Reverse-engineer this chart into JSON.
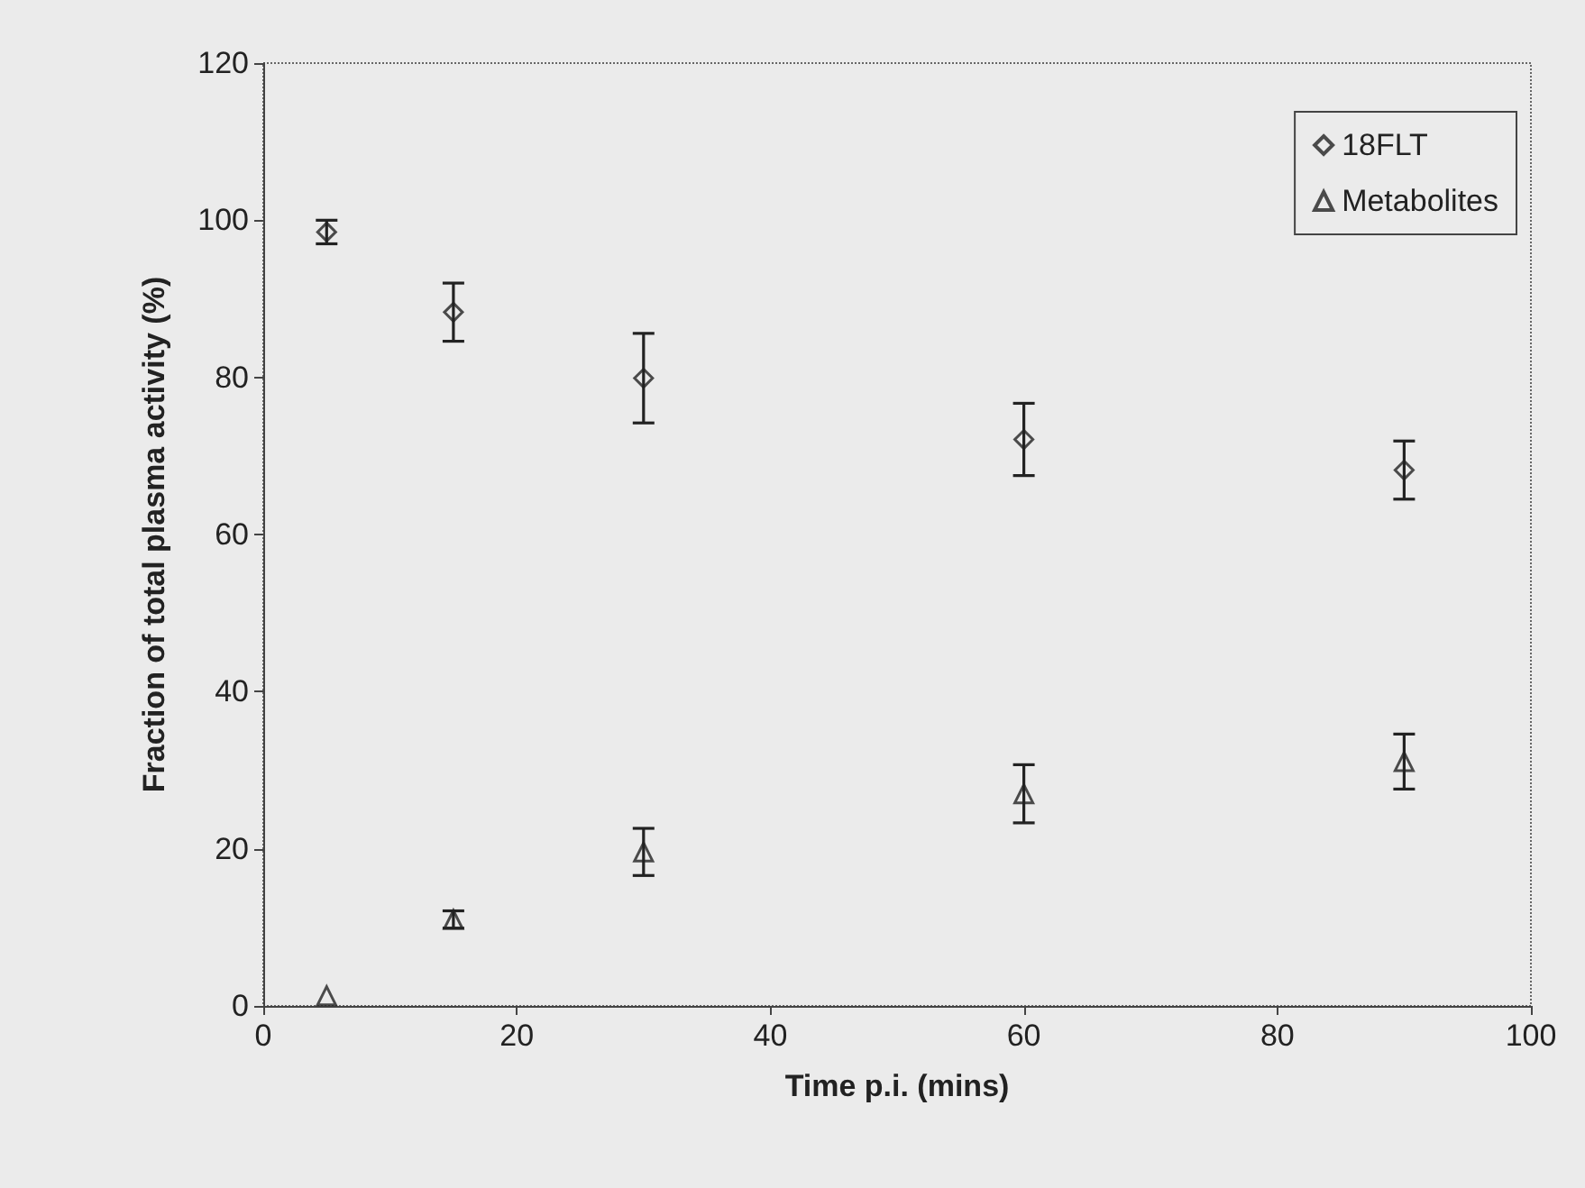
{
  "chart_data": {
    "type": "scatter",
    "xlabel": "Time p.i. (mins)",
    "ylabel": "Fraction of total plasma activity (%)",
    "x": [
      5,
      15,
      30,
      60,
      90
    ],
    "series": [
      {
        "name": "18FLT",
        "color": "#222222",
        "marker": "diamond",
        "values": [
          98.5,
          88.3,
          79.9,
          72.1,
          68.2
        ],
        "errors": [
          1.5,
          3.7,
          5.7,
          4.6,
          3.7
        ]
      },
      {
        "name": "Metabolites",
        "color": "#222222",
        "marker": "triangle",
        "values": [
          1.3,
          11.0,
          19.6,
          27.0,
          31.1
        ],
        "errors": [
          null,
          1.1,
          3.0,
          3.7,
          3.5
        ]
      }
    ],
    "xlim": [
      0,
      100
    ],
    "xticks": [
      0,
      20,
      40,
      60,
      80,
      100
    ],
    "ylim": [
      0,
      120
    ],
    "yticks": [
      0,
      20,
      40,
      60,
      80,
      100,
      120
    ],
    "grid": false,
    "legend": "top right"
  }
}
